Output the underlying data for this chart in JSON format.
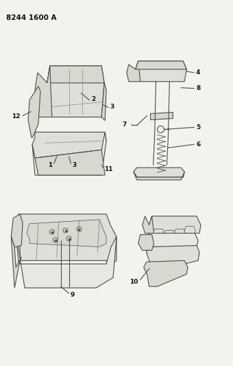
{
  "title": "8244 1600 A",
  "bg_color": "#f2f2ee",
  "line_color": "#4a4a4a",
  "label_color": "#111111",
  "title_fontsize": 7.5,
  "label_fontsize": 6.5,
  "fill_color": "#e8e8e2",
  "fill_dark": "#d8d8d0",
  "fill_mid": "#dededa"
}
